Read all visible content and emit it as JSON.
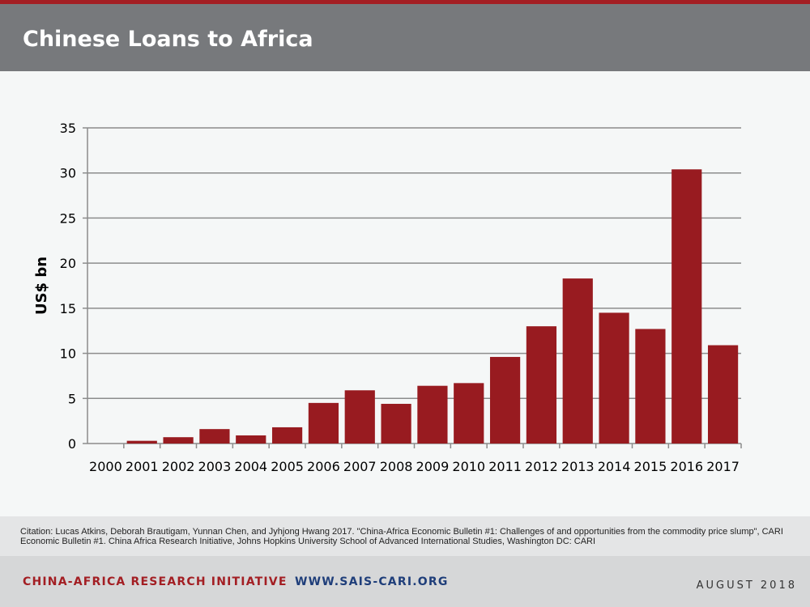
{
  "header": {
    "title": "Chinese Loans to Africa"
  },
  "colors": {
    "accent": "#a31e23",
    "bar": "#981b20",
    "header_bg": "#77797c",
    "web": "#1f3e7a"
  },
  "chart_data": {
    "type": "bar",
    "title": "",
    "xlabel": "",
    "ylabel": "US$ bn",
    "categories": [
      "2000",
      "2001",
      "2002",
      "2003",
      "2004",
      "2005",
      "2006",
      "2007",
      "2008",
      "2009",
      "2010",
      "2011",
      "2012",
      "2013",
      "2014",
      "2015",
      "2016",
      "2017"
    ],
    "values": [
      0,
      0.3,
      0.7,
      1.6,
      0.9,
      1.8,
      4.5,
      5.9,
      4.4,
      6.4,
      6.7,
      9.6,
      13.0,
      18.3,
      14.5,
      12.7,
      30.4,
      10.9
    ],
    "ylim": [
      0,
      35
    ],
    "yticks": [
      0,
      5,
      10,
      15,
      20,
      25,
      30,
      35
    ],
    "grid": true,
    "legend": "none"
  },
  "citation": "Citation: Lucas Atkins, Deborah Brautigam, Yunnan Chen, and Jyhjong Hwang 2017. \"China-Africa Economic Bulletin #1: Challenges of and opportunities from the commodity price slump\", CARI Economic Bulletin #1. China Africa Research Initiative, Johns Hopkins University School of Advanced International Studies, Washington DC: CARI",
  "footer": {
    "org": "CHINA-AFRICA RESEARCH INITIATIVE",
    "website": "WWW.SAIS-CARI.ORG",
    "date": "AUGUST 2018"
  }
}
